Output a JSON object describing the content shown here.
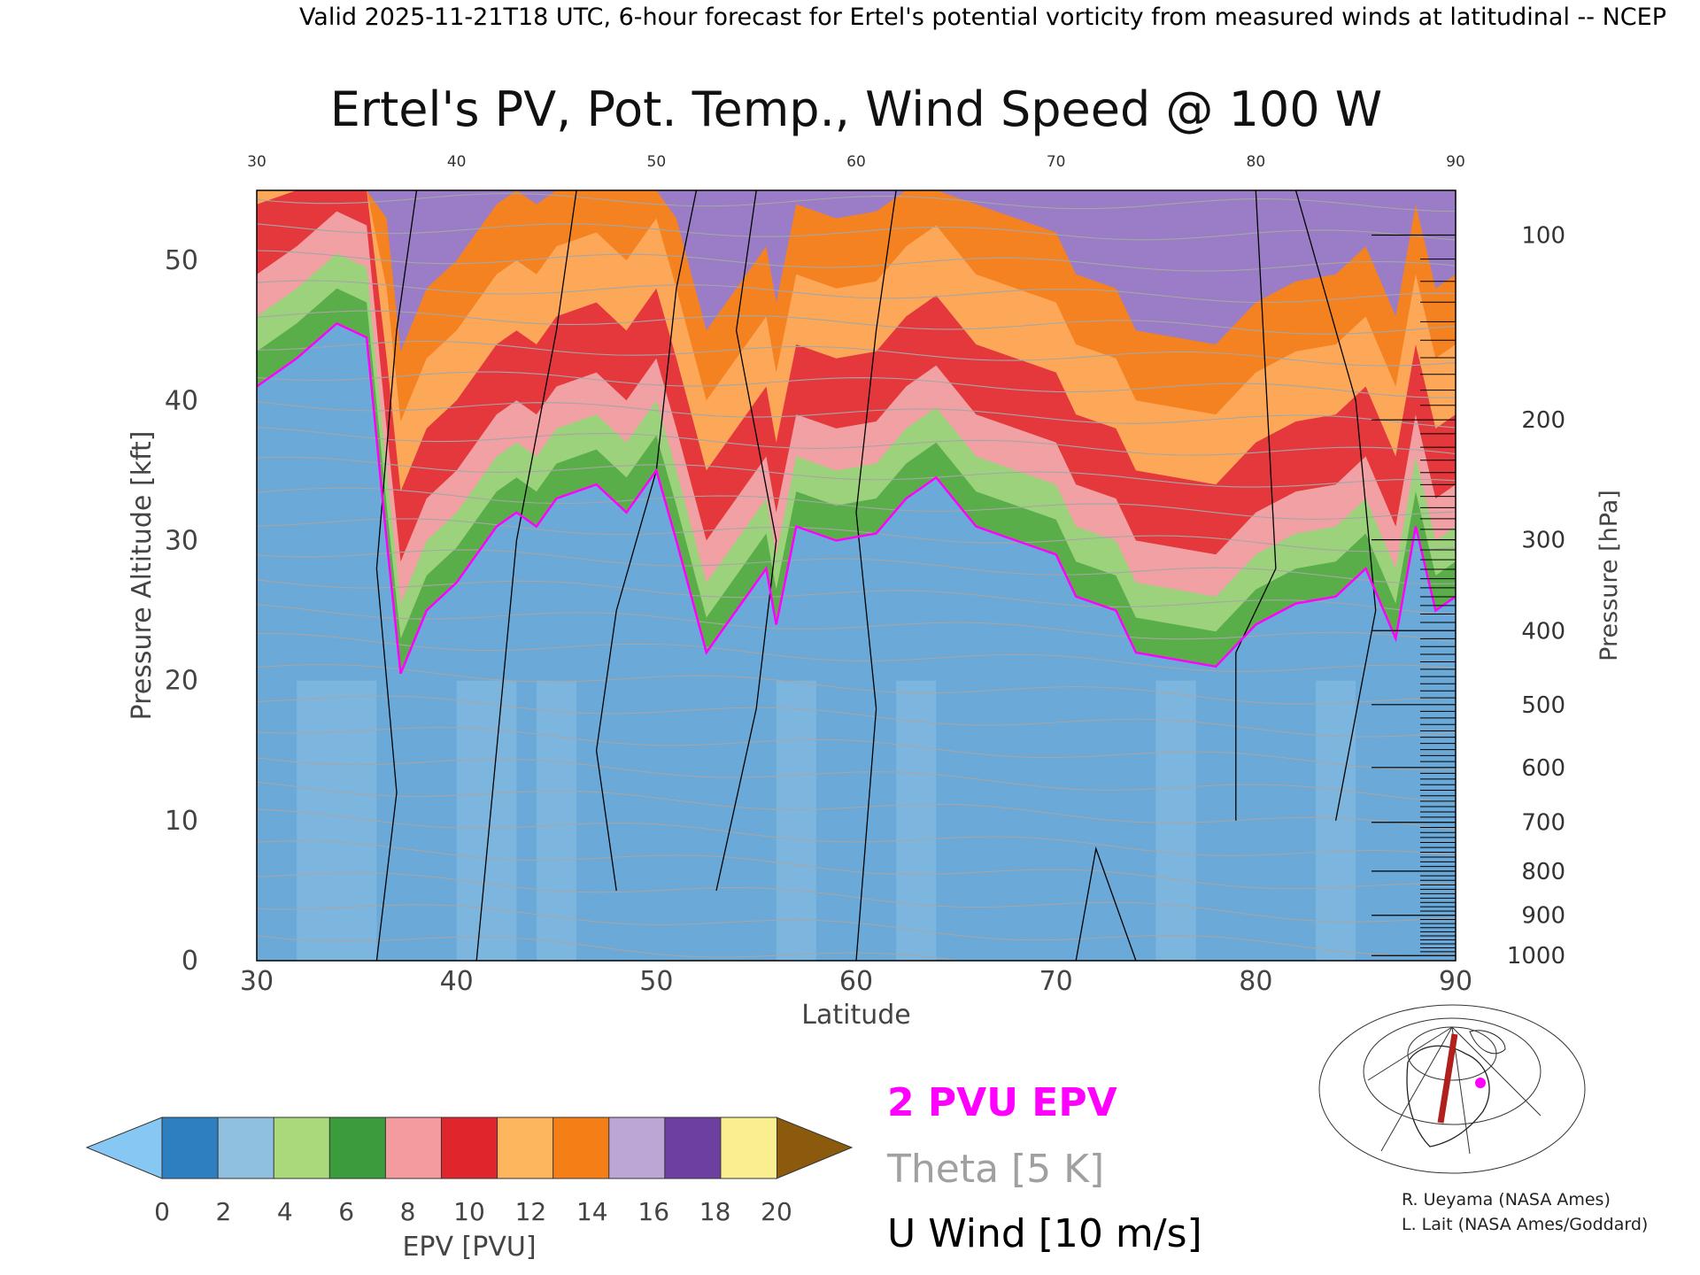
{
  "header": "Valid 2025-11-21T18 UTC, 6-hour forecast for Ertel's potential vorticity from measured winds at latitudinal -- NCEP",
  "chart_data": {
    "type": "heatmap",
    "title": "Ertel's PV, Pot. Temp., Wind Speed @ 100 W",
    "xlabel": "Latitude",
    "ylabel": "Pressure Altitude [kft]",
    "y2label": "Pressure [hPa]",
    "xlim": [
      30,
      90
    ],
    "ylim": [
      0,
      55
    ],
    "x_ticks": [
      "30",
      "40",
      "50",
      "60",
      "70",
      "80",
      "90"
    ],
    "y_ticks": [
      "0",
      "10",
      "20",
      "30",
      "40",
      "50"
    ],
    "pressure_ticks": [
      "100",
      "200",
      "300",
      "400",
      "500",
      "600",
      "700",
      "800",
      "900",
      "1000"
    ],
    "pressure_values": [
      100,
      200,
      300,
      400,
      500,
      600,
      700,
      800,
      900,
      1000
    ],
    "grid": false,
    "colorbar": {
      "label": "EPV [PVU]",
      "ticks": [
        "0",
        "2",
        "4",
        "6",
        "8",
        "10",
        "12",
        "14",
        "16",
        "18",
        "20"
      ],
      "colors": [
        "#2e7fc0",
        "#8fc0e0",
        "#a9d97a",
        "#3a9c3a",
        "#f49ba0",
        "#e0262c",
        "#fdb55e",
        "#f57f17",
        "#bba6d6",
        "#6c3fa0",
        "#f9ef8e"
      ],
      "under_color": "#86c8f3",
      "over_color": "#8b5a0c"
    },
    "pv_2pvu_altitude_kft": [
      {
        "lat": 30,
        "alt": 41
      },
      {
        "lat": 32,
        "alt": 43
      },
      {
        "lat": 34,
        "alt": 45.5
      },
      {
        "lat": 35.5,
        "alt": 44.5
      },
      {
        "lat": 36.5,
        "alt": 30
      },
      {
        "lat": 37.2,
        "alt": 20.5
      },
      {
        "lat": 38.5,
        "alt": 25
      },
      {
        "lat": 40,
        "alt": 27
      },
      {
        "lat": 42,
        "alt": 31
      },
      {
        "lat": 43,
        "alt": 32
      },
      {
        "lat": 44,
        "alt": 31
      },
      {
        "lat": 45,
        "alt": 33
      },
      {
        "lat": 47,
        "alt": 34
      },
      {
        "lat": 48.5,
        "alt": 32
      },
      {
        "lat": 50,
        "alt": 35
      },
      {
        "lat": 51,
        "alt": 30
      },
      {
        "lat": 52.5,
        "alt": 22
      },
      {
        "lat": 54,
        "alt": 25
      },
      {
        "lat": 55.5,
        "alt": 28
      },
      {
        "lat": 56,
        "alt": 24
      },
      {
        "lat": 57,
        "alt": 31
      },
      {
        "lat": 59,
        "alt": 30
      },
      {
        "lat": 61,
        "alt": 30.5
      },
      {
        "lat": 62.5,
        "alt": 33
      },
      {
        "lat": 64,
        "alt": 34.5
      },
      {
        "lat": 66,
        "alt": 31
      },
      {
        "lat": 68,
        "alt": 30
      },
      {
        "lat": 70,
        "alt": 29
      },
      {
        "lat": 71,
        "alt": 26
      },
      {
        "lat": 73,
        "alt": 25
      },
      {
        "lat": 74,
        "alt": 22
      },
      {
        "lat": 76,
        "alt": 21.5
      },
      {
        "lat": 78,
        "alt": 21
      },
      {
        "lat": 80,
        "alt": 24
      },
      {
        "lat": 82,
        "alt": 25.5
      },
      {
        "lat": 84,
        "alt": 26
      },
      {
        "lat": 85.5,
        "alt": 28
      },
      {
        "lat": 87,
        "alt": 23
      },
      {
        "lat": 88,
        "alt": 31
      },
      {
        "lat": 89,
        "alt": 25
      },
      {
        "lat": 90,
        "alt": 26
      }
    ]
  },
  "legend": {
    "pv_label": "2 PVU EPV",
    "pv_color": "#ff00ff",
    "theta_label": "Theta [5 K]",
    "theta_color": "#a0a0a0",
    "wind_label": "U Wind [10 m/s]",
    "wind_color": "#000000"
  },
  "credits": {
    "line1": "R. Ueyama (NASA Ames)",
    "line2": "L. Lait (NASA Ames/Goddard)"
  }
}
